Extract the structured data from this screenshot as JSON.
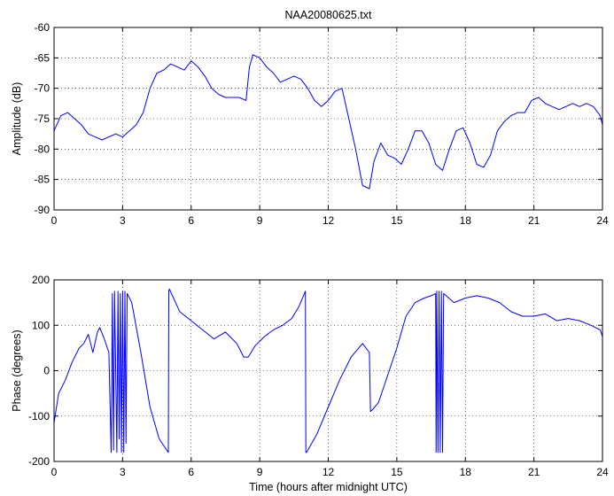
{
  "chart_data": [
    {
      "type": "line",
      "title": "NAA20080625.txt",
      "xlabel": "",
      "ylabel": "Amplitude (dB)",
      "xlim": [
        0,
        24
      ],
      "ylim": [
        -90,
        -60
      ],
      "xticks": [
        "0",
        "3",
        "6",
        "9",
        "12",
        "15",
        "18",
        "21",
        "24"
      ],
      "yticks": [
        "-90",
        "-85",
        "-80",
        "-75",
        "-70",
        "-65",
        "-60"
      ],
      "grid": true,
      "line_color": "#0000ff",
      "series": [
        {
          "x": [
            0,
            0.3,
            0.6,
            0.9,
            1.2,
            1.5,
            1.8,
            2.1,
            2.4,
            2.7,
            3.0,
            3.3,
            3.6,
            3.9,
            4.2,
            4.5,
            4.8,
            5.1,
            5.4,
            5.7,
            6.0,
            6.3,
            6.6,
            6.9,
            7.2,
            7.5,
            7.8,
            8.1,
            8.4,
            8.55,
            8.7,
            9.0,
            9.3,
            9.6,
            9.9,
            10.2,
            10.5,
            10.8,
            11.1,
            11.4,
            11.7,
            12.0,
            12.3,
            12.6,
            12.9,
            13.2,
            13.5,
            13.8,
            14.0,
            14.3,
            14.6,
            14.9,
            15.2,
            15.5,
            15.8,
            16.1,
            16.4,
            16.7,
            17.0,
            17.3,
            17.6,
            17.9,
            18.2,
            18.5,
            18.8,
            19.1,
            19.4,
            19.7,
            20.0,
            20.3,
            20.6,
            20.9,
            21.2,
            21.5,
            21.8,
            22.1,
            22.4,
            22.7,
            23.0,
            23.3,
            23.6,
            23.9,
            24.0
          ],
          "y": [
            -77,
            -74.5,
            -74,
            -75,
            -76,
            -77.5,
            -78,
            -78.5,
            -78,
            -77.5,
            -78,
            -77,
            -76,
            -74,
            -70,
            -67.5,
            -67,
            -66,
            -66.5,
            -67,
            -65.5,
            -66.5,
            -68,
            -70,
            -71,
            -71.5,
            -71.5,
            -71.5,
            -72,
            -66.5,
            -64.5,
            -65,
            -66.5,
            -67.5,
            -69,
            -68.5,
            -68,
            -68.5,
            -70,
            -72,
            -73,
            -72,
            -70.5,
            -70,
            -75,
            -80,
            -86,
            -86.5,
            -82,
            -79,
            -81,
            -81.5,
            -82.5,
            -80,
            -77,
            -77,
            -79,
            -82.5,
            -83.5,
            -80,
            -77,
            -76.5,
            -79,
            -82.5,
            -83,
            -81,
            -77,
            -75.5,
            -74.5,
            -74,
            -74,
            -72,
            -71.5,
            -72.5,
            -73,
            -73.5,
            -73,
            -72.5,
            -73,
            -72.5,
            -73,
            -74.5,
            -76
          ]
        }
      ]
    },
    {
      "type": "line",
      "title": "",
      "xlabel": "Time (hours after midnight UTC)",
      "ylabel": "Phase (degrees)",
      "xlim": [
        0,
        24
      ],
      "ylim": [
        -200,
        200
      ],
      "xticks": [
        "0",
        "3",
        "6",
        "9",
        "12",
        "15",
        "18",
        "21",
        "24"
      ],
      "yticks": [
        "-200",
        "-100",
        "0",
        "100",
        "200"
      ],
      "grid": true,
      "line_color": "#0000ff",
      "series": [
        {
          "x": [
            0,
            0.2,
            0.5,
            0.8,
            1.1,
            1.3,
            1.5,
            1.7,
            1.9,
            2.0,
            2.2,
            2.4,
            2.5,
            2.55,
            2.6,
            2.65,
            2.75,
            2.8,
            2.85,
            2.9,
            2.95,
            3.0,
            3.05,
            3.1,
            3.15,
            3.2,
            3.4,
            3.8,
            4.2,
            4.6,
            5.0,
            5.02,
            5.05,
            5.5,
            6.0,
            6.5,
            7.0,
            7.5,
            8.0,
            8.3,
            8.5,
            8.8,
            9.2,
            9.6,
            10.0,
            10.4,
            10.7,
            11.0,
            11.02,
            11.05,
            11.5,
            12.0,
            12.5,
            13.0,
            13.5,
            13.8,
            13.85,
            13.95,
            14.2,
            14.6,
            15.0,
            15.4,
            15.8,
            16.2,
            16.5,
            16.7,
            16.72,
            16.75,
            16.8,
            16.85,
            16.9,
            16.95,
            17.0,
            17.05,
            17.5,
            18.0,
            18.5,
            19.0,
            19.5,
            20.0,
            20.5,
            21.0,
            21.5,
            22.0,
            22.5,
            23.0,
            23.5,
            23.9,
            24.0
          ],
          "y": [
            -115,
            -50,
            -20,
            20,
            50,
            60,
            80,
            40,
            85,
            95,
            70,
            40,
            -180,
            170,
            -175,
            175,
            -180,
            175,
            -150,
            170,
            -180,
            175,
            -180,
            175,
            -160,
            170,
            150,
            40,
            -80,
            -150,
            -180,
            175,
            180,
            130,
            110,
            90,
            70,
            85,
            60,
            30,
            30,
            55,
            75,
            90,
            100,
            115,
            140,
            175,
            -180,
            -180,
            -140,
            -80,
            -20,
            30,
            60,
            40,
            -90,
            -85,
            -70,
            -10,
            50,
            120,
            150,
            160,
            165,
            170,
            -180,
            175,
            -180,
            175,
            -180,
            175,
            -180,
            170,
            150,
            160,
            165,
            160,
            150,
            130,
            120,
            120,
            125,
            110,
            115,
            110,
            100,
            90,
            75
          ]
        }
      ]
    }
  ]
}
